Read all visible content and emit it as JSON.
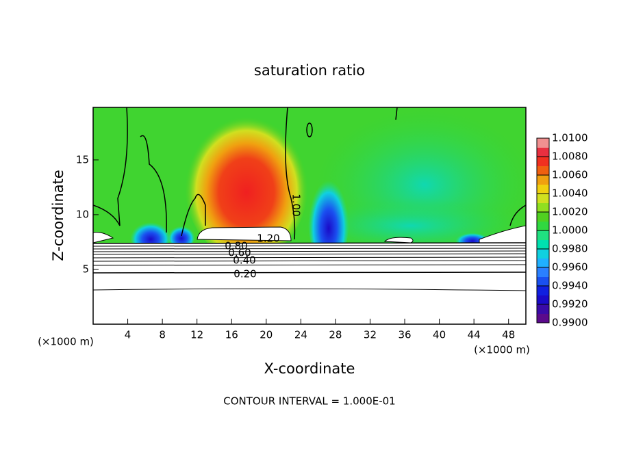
{
  "chart_data": {
    "type": "contour",
    "title": "saturation ratio",
    "xlabel": "X-coordinate",
    "ylabel": "Z-coordinate",
    "x_unit": "(×1000 m)",
    "xlim": [
      0,
      50
    ],
    "ylim": [
      0,
      19.8
    ],
    "xticks": [
      4,
      8,
      12,
      16,
      20,
      24,
      28,
      32,
      36,
      40,
      44,
      48
    ],
    "yticks": [
      5,
      10,
      15
    ],
    "colorbar": {
      "lim": [
        0.99,
        1.01
      ],
      "ticks": [
        {
          "value": 0.99,
          "label": "0.9900"
        },
        {
          "value": 0.992,
          "label": "0.9920"
        },
        {
          "value": 0.994,
          "label": "0.9940"
        },
        {
          "value": 0.996,
          "label": "0.9960"
        },
        {
          "value": 0.998,
          "label": "0.9980"
        },
        {
          "value": 1.0,
          "label": "1.0000"
        },
        {
          "value": 1.002,
          "label": "1.0020"
        },
        {
          "value": 1.004,
          "label": "1.0040"
        },
        {
          "value": 1.006,
          "label": "1.0060"
        },
        {
          "value": 1.008,
          "label": "1.0080"
        },
        {
          "value": 1.01,
          "label": "1.0100"
        }
      ],
      "colors": [
        "#5b0a8c",
        "#3a0aa8",
        "#1a0ac8",
        "#1020e0",
        "#1a50f0",
        "#2a80ff",
        "#20b0ff",
        "#10d0e0",
        "#00e0b0",
        "#20e080",
        "#30d840",
        "#50d020",
        "#90e020",
        "#d0e020",
        "#f0d010",
        "#f0a010",
        "#f06010",
        "#f03020",
        "#e83040",
        "#f09090"
      ]
    },
    "contour_labels": [
      {
        "value": 1.2,
        "label": "1.20"
      },
      {
        "value": 1.0,
        "label": "1.00"
      },
      {
        "value": 0.8,
        "label": "0.80"
      },
      {
        "value": 0.6,
        "label": "0.60"
      },
      {
        "value": 0.4,
        "label": "0.40"
      },
      {
        "value": 0.2,
        "label": "0.20"
      }
    ],
    "footer": "CONTOUR INTERVAL = 1.000E-01"
  }
}
